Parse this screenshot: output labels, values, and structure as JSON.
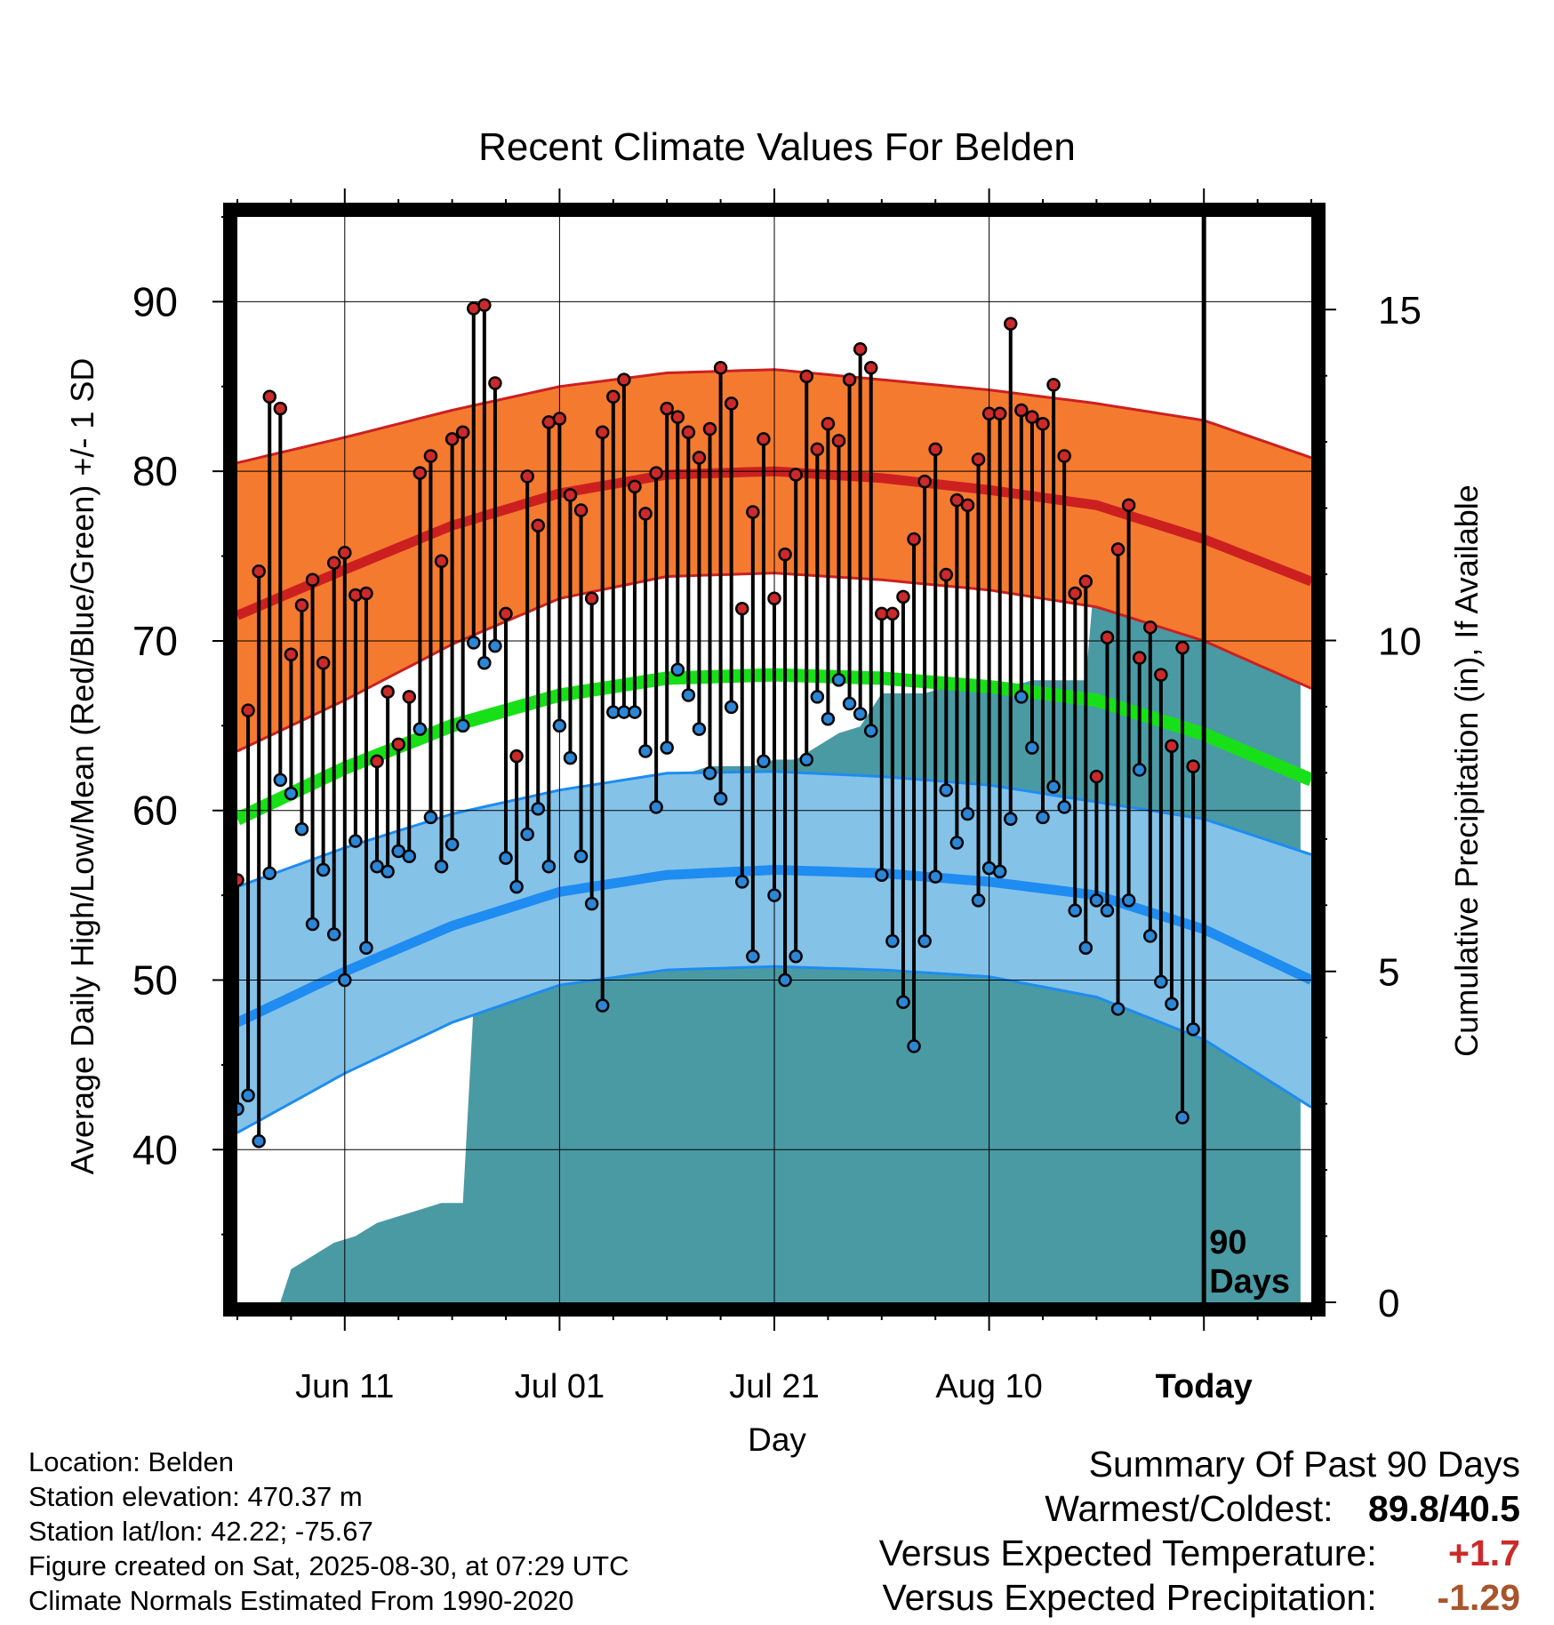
{
  "chart_data": {
    "type": "line",
    "title": "Recent Climate Values For Belden",
    "xlabel": "Day",
    "ylabel": "Average Daily High/Low/Mean (Red/Blue/Green) +/- 1 SD",
    "y2label": "Cumulative Precipitation (in), If Available",
    "x_tick_labels": [
      "Jun 11",
      "Jul 01",
      "Jul 21",
      "Aug 10",
      "Today"
    ],
    "x_tick_days": [
      11,
      31,
      51,
      71,
      91
    ],
    "today_day": 91,
    "today_label": "90 Days",
    "xlim": [
      1,
      101
    ],
    "ylim": [
      31,
      95
    ],
    "y_ticks": [
      40,
      50,
      60,
      70,
      80,
      90
    ],
    "y2lim": [
      0,
      16.4
    ],
    "y2_ticks": [
      0,
      5,
      10,
      15
    ],
    "grid": true,
    "normals": {
      "day": [
        1,
        11,
        21,
        31,
        41,
        51,
        61,
        71,
        81,
        91,
        101
      ],
      "high_mean": [
        71.5,
        74.2,
        76.8,
        78.7,
        79.8,
        80.0,
        79.6,
        78.9,
        78.0,
        76.0,
        73.5
      ],
      "high_plus_sd": [
        80.5,
        82.0,
        83.6,
        85.0,
        85.8,
        86.0,
        85.4,
        84.8,
        84.0,
        83.0,
        80.8
      ],
      "high_minus_sd": [
        63.5,
        66.5,
        69.8,
        72.5,
        73.8,
        74.0,
        73.6,
        73.0,
        72.0,
        70.0,
        67.2
      ],
      "mean": [
        59.5,
        62.5,
        65.0,
        66.8,
        67.8,
        68.0,
        67.8,
        67.3,
        66.5,
        64.5,
        61.8
      ],
      "low_mean": [
        47.5,
        50.5,
        53.2,
        55.2,
        56.2,
        56.5,
        56.3,
        55.8,
        55.0,
        53.0,
        50.0
      ],
      "low_plus_sd": [
        55.5,
        57.8,
        59.8,
        61.2,
        62.2,
        62.3,
        62.0,
        61.5,
        60.5,
        59.5,
        57.4
      ],
      "low_minus_sd": [
        41.0,
        44.5,
        47.5,
        49.7,
        50.6,
        50.8,
        50.6,
        50.2,
        49.0,
        46.5,
        42.5
      ]
    },
    "series": [
      {
        "name": "High",
        "color": "#cc2a2a",
        "values": [
          55.9,
          65.9,
          74.1,
          84.4,
          83.7,
          69.2,
          72.1,
          73.6,
          68.7,
          74.6,
          75.2,
          72.7,
          72.8,
          62.9,
          67.0,
          63.9,
          66.7,
          79.9,
          80.9,
          74.7,
          81.9,
          82.3,
          89.6,
          89.8,
          85.2,
          71.6,
          63.2,
          79.7,
          76.8,
          82.9,
          83.1,
          78.6,
          77.7,
          72.5,
          82.3,
          84.4,
          85.4,
          79.1,
          77.5,
          79.9,
          83.7,
          83.2,
          82.3,
          80.8,
          82.5,
          86.1,
          84.0,
          71.9,
          77.6,
          81.9,
          72.5,
          75.1,
          79.8,
          85.6,
          81.3,
          82.8,
          81.8,
          85.4,
          87.2,
          86.1,
          71.6,
          71.6,
          72.6,
          76.0,
          79.4,
          81.3,
          73.9,
          78.3,
          78.0,
          80.7,
          83.4,
          83.4,
          88.7,
          83.6,
          83.2,
          82.8,
          85.1,
          80.9,
          72.8,
          73.5,
          62.0,
          70.2,
          75.4,
          78.0,
          69.0,
          70.8,
          68.0,
          63.8,
          69.6,
          62.6
        ]
      },
      {
        "name": "Low",
        "color": "#2b86d6",
        "values": [
          42.4,
          43.2,
          40.5,
          56.3,
          61.8,
          61.0,
          58.9,
          53.3,
          56.5,
          52.7,
          50.0,
          58.2,
          51.9,
          56.7,
          56.4,
          57.6,
          57.3,
          64.8,
          59.6,
          56.7,
          58.0,
          65.0,
          69.9,
          68.7,
          69.7,
          57.2,
          55.5,
          58.6,
          60.1,
          56.7,
          65.0,
          63.1,
          57.3,
          54.5,
          48.5,
          65.8,
          65.8,
          65.8,
          63.5,
          60.2,
          63.7,
          68.3,
          66.8,
          64.8,
          62.2,
          60.7,
          66.1,
          55.8,
          51.4,
          62.9,
          55.0,
          50.0,
          51.4,
          63.0,
          66.7,
          65.4,
          67.7,
          66.3,
          65.7,
          64.7,
          56.2,
          52.3,
          48.7,
          46.1,
          52.3,
          56.1,
          61.2,
          58.1,
          59.8,
          54.7,
          56.6,
          56.4,
          59.5,
          66.7,
          63.7,
          59.6,
          61.4,
          60.2,
          54.1,
          51.9,
          54.7,
          54.1,
          48.3,
          54.7,
          62.4,
          52.6,
          49.9,
          48.6,
          41.9,
          47.1
        ]
      },
      {
        "name": "Cumulative Precipitation",
        "color": "#4a9aa4",
        "x": [
          5,
          6,
          8,
          10,
          12,
          14,
          16,
          18,
          20,
          22,
          23,
          25,
          27,
          29,
          31,
          33,
          35,
          36,
          38,
          40,
          41,
          42,
          43,
          45,
          47,
          49,
          51,
          53,
          55,
          57,
          59,
          61,
          63,
          65,
          67,
          69,
          71,
          73,
          75,
          77,
          79,
          80,
          81,
          83,
          85,
          87,
          89,
          91,
          95,
          100
        ],
        "values": [
          0,
          0.5,
          0.7,
          0.9,
          1.0,
          1.2,
          1.3,
          1.4,
          1.5,
          1.5,
          4.5,
          4.6,
          4.7,
          4.9,
          5.0,
          5.2,
          5.3,
          5.7,
          5.9,
          6.2,
          6.5,
          7.0,
          8.0,
          8.1,
          8.1,
          8.1,
          8.2,
          8.2,
          8.4,
          8.6,
          8.7,
          9.2,
          9.2,
          9.2,
          9.3,
          9.3,
          9.3,
          9.3,
          9.4,
          9.4,
          9.4,
          9.4,
          11.3,
          11.4,
          11.5,
          11.6,
          11.7,
          11.8,
          11.8,
          11.8
        ]
      }
    ]
  },
  "info": {
    "location": "Location: Belden",
    "elevation": "Station elevation: 470.37 m",
    "latlon": "Station lat/lon: 42.22; -75.67",
    "created": "Figure created on Sat, 2025-08-30, at 07:29 UTC",
    "normals": "Climate Normals Estimated From 1990-2020"
  },
  "summary": {
    "heading": "Summary Of Past 90 Days",
    "warm_cold_label": "Warmest/Coldest:",
    "warmest": "89.8",
    "separator": "/",
    "coldest": "40.5",
    "temp_label": "Versus Expected Temperature:",
    "temp_value": "+1.7",
    "temp_color": "#cc2a2a",
    "precip_label": "Versus Expected Precipitation:",
    "precip_value": "-1.29",
    "precip_color": "#a8552b"
  },
  "colors": {
    "high_band": "#f47a30",
    "high_line": "#cc2020",
    "mean_line": "#18e018",
    "low_band": "#84c2e8",
    "low_line": "#1e8cf0",
    "precip_fill": "#4a9aa4"
  }
}
